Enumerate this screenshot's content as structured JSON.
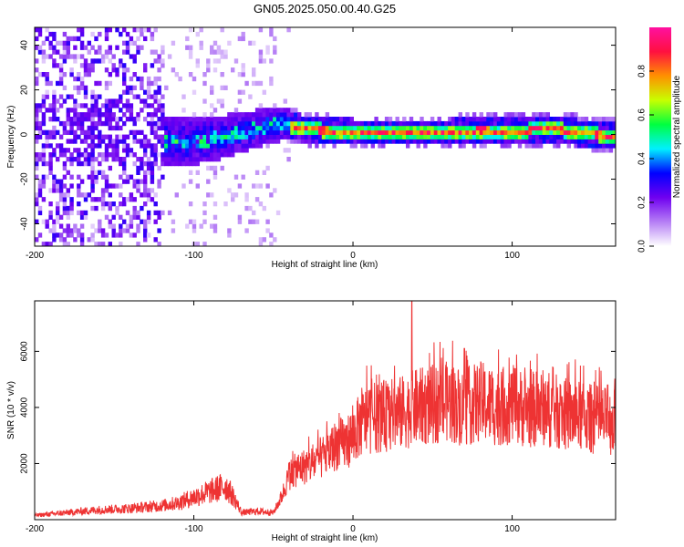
{
  "title": "GN05.2025.050.00.40.G25",
  "chart_data": [
    {
      "type": "heatmap",
      "xlabel": "Height of straight line (km)",
      "ylabel": "Frequency (Hz)",
      "xlim": [
        -200,
        165
      ],
      "ylim": [
        -50,
        48
      ],
      "x_ticks": [
        -200,
        -100,
        0,
        100
      ],
      "x_tick_labels": [
        "-200",
        "-100",
        "0",
        "100"
      ],
      "y_ticks": [
        -40,
        -20,
        0,
        20,
        40
      ],
      "y_tick_labels": [
        "-40",
        "-20",
        "0",
        "20",
        "40"
      ],
      "colorbar": {
        "label": "Normalized spectral amplitude",
        "range": [
          0,
          1
        ],
        "ticks": [
          0,
          0.2,
          0.4,
          0.6,
          0.8
        ],
        "tick_labels": [
          "0.0",
          "0.2",
          "0.4",
          "0.6",
          "0.8"
        ],
        "colors": [
          "#ffffff",
          "#b57ef5",
          "#7000f0",
          "#0000ff",
          "#00f0ff",
          "#00ff40",
          "#c8ff00",
          "#ff9000",
          "#ff1040",
          "#ff10a0"
        ]
      },
      "ridge": {
        "x": [
          -110,
          -90,
          -70,
          -55,
          -45,
          -35,
          -20,
          0,
          20,
          40,
          60,
          80,
          100,
          120,
          140,
          165
        ],
        "freq": [
          -4,
          -3,
          0,
          3,
          4,
          2,
          1,
          0,
          0,
          0,
          0,
          1,
          0,
          2,
          0,
          -2
        ]
      }
    },
    {
      "type": "line",
      "xlabel": "Height of straight line (km)",
      "ylabel": "SNR (10 * v/v)",
      "xlim": [
        -200,
        165
      ],
      "ylim": [
        0,
        7800
      ],
      "x_ticks": [
        -200,
        -100,
        0,
        100
      ],
      "x_tick_labels": [
        "-200",
        "-100",
        "0",
        "100"
      ],
      "y_ticks": [
        2000,
        4000,
        6000
      ],
      "y_tick_labels": [
        "2000",
        "4000",
        "6000"
      ],
      "series": [
        {
          "name": "SNR",
          "color": "#ee3333",
          "x": [
            -200,
            -180,
            -160,
            -140,
            -120,
            -110,
            -100,
            -90,
            -80,
            -75,
            -70,
            -60,
            -50,
            -45,
            -40,
            -35,
            -30,
            -25,
            -20,
            -15,
            -10,
            -5,
            0,
            5,
            10,
            20,
            30,
            40,
            50,
            60,
            70,
            80,
            90,
            100,
            110,
            120,
            130,
            140,
            150,
            160,
            165
          ],
          "values": [
            150,
            250,
            350,
            400,
            500,
            600,
            800,
            1000,
            1200,
            800,
            250,
            300,
            250,
            800,
            1600,
            1800,
            1900,
            2000,
            2200,
            2400,
            2700,
            2700,
            3000,
            3400,
            3600,
            3700,
            3800,
            4000,
            4100,
            4200,
            4000,
            4200,
            4000,
            4100,
            3900,
            4000,
            3800,
            3700,
            3600,
            3500,
            3500
          ],
          "peak_label_values": [
            7800,
            6100,
            5200,
            4800
          ]
        }
      ]
    }
  ]
}
